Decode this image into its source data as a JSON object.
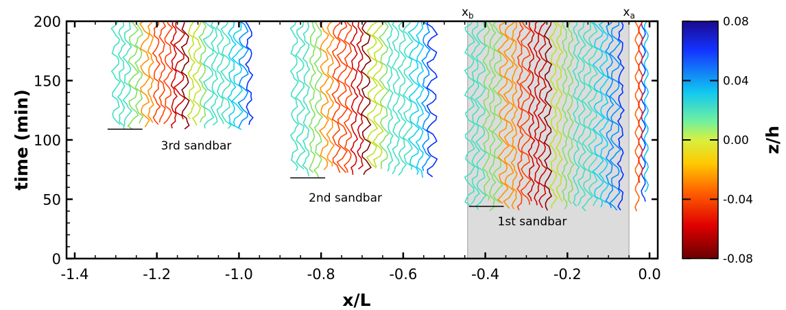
{
  "chart_data": {
    "type": "contour",
    "title": "",
    "xlabel": "x/L",
    "ylabel": "time (min)",
    "xlim": [
      -1.42,
      0.02
    ],
    "ylim": [
      0,
      200
    ],
    "xticks": [
      -1.4,
      -1.2,
      -1.0,
      -0.8,
      -0.6,
      -0.4,
      -0.2,
      0.0
    ],
    "xtick_labels": [
      "-1.4",
      "-1.2",
      "-1.0",
      "-0.8",
      "-0.6",
      "-0.4",
      "-0.2",
      "0.0"
    ],
    "yticks": [
      0,
      50,
      100,
      150,
      200
    ],
    "ytick_labels": [
      "0",
      "50",
      "100",
      "150",
      "200"
    ],
    "colorbar": {
      "label": "z/h",
      "range": [
        -0.08,
        0.08
      ],
      "ticks": [
        0.08,
        0.04,
        0.0,
        -0.04,
        -0.08
      ],
      "tick_labels": [
        "0.08",
        "0.04",
        "0.00",
        "-0.04",
        "-0.08"
      ],
      "colormap": "jet_reversed"
    },
    "shaded_region": {
      "x_start": -0.443,
      "x_end": -0.05,
      "color": "#dcdcdc"
    },
    "markers": [
      {
        "label": "x",
        "sub": "b",
        "x": -0.443
      },
      {
        "label": "x",
        "sub": "a",
        "x": -0.05
      }
    ],
    "annotations": [
      {
        "text": "3rd sandbar",
        "line_x": [
          -1.32,
          -1.235
        ],
        "line_y": 109,
        "text_x": -1.19,
        "text_y": 92
      },
      {
        "text": "2nd sandbar",
        "line_x": [
          -0.875,
          -0.79
        ],
        "line_y": 68,
        "text_x": -0.83,
        "text_y": 48
      },
      {
        "text": "1st sandbar",
        "line_x": [
          -0.44,
          -0.355
        ],
        "line_y": 44,
        "text_x": -0.37,
        "text_y": 28
      }
    ],
    "sandbar_zones": [
      {
        "name": "3rd",
        "x_start": -1.3,
        "x_end": -0.975,
        "t_start": 108,
        "columns": 24
      },
      {
        "name": "2nd",
        "x_start": -0.865,
        "x_end": -0.53,
        "t_start": 68,
        "columns": 24
      },
      {
        "name": "1st",
        "x_start": -0.438,
        "x_end": -0.07,
        "t_start": 40,
        "columns": 28
      }
    ]
  }
}
